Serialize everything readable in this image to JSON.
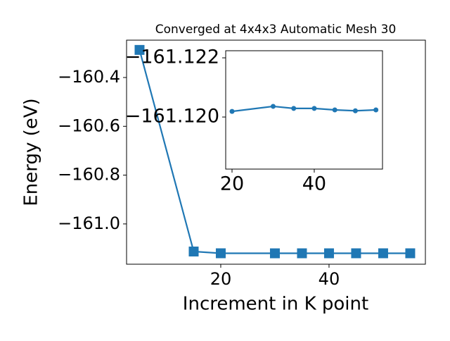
{
  "chart_data": [
    {
      "type": "line",
      "title": "Converged at 4x4x3 Automatic Mesh 30",
      "xlabel": "Increment in K point",
      "ylabel": "Energy (eV)",
      "marker": "square",
      "x": [
        5,
        15,
        20,
        30,
        35,
        40,
        45,
        50,
        55
      ],
      "series": [
        {
          "color": "#1f77b4",
          "values": [
            -160.287,
            -161.113,
            -161.1202,
            -161.12036,
            -161.12029,
            -161.12029,
            -161.12024,
            -161.12021,
            -161.12024
          ]
        }
      ],
      "xlim": [
        2.6,
        57.8
      ],
      "xticks": [
        20,
        40
      ],
      "ylim": [
        -161.165,
        -160.247
      ],
      "yticks": [
        {
          "value": -161.0,
          "label": "−161.0"
        },
        {
          "value": -160.8,
          "label": "−160.8"
        },
        {
          "value": -160.6,
          "label": "−160.6"
        },
        {
          "value": -160.4,
          "label": "−160.4"
        }
      ]
    },
    {
      "type": "line",
      "marker": "circle",
      "x": [
        20,
        30,
        35,
        40,
        45,
        50,
        55
      ],
      "series": [
        {
          "color": "#1f77b4",
          "values": [
            -161.12019,
            -161.12036,
            -161.12029,
            -161.12029,
            -161.12024,
            -161.12021,
            -161.12024
          ]
        }
      ],
      "xlim": [
        18.46,
        56.6
      ],
      "xticks": [
        20,
        40
      ],
      "ylim": [
        -161.11824,
        -161.12224
      ],
      "yticks": [
        {
          "value": -161.12,
          "label": "−161.120"
        },
        {
          "value": -161.122,
          "label": "−161.122"
        }
      ]
    }
  ]
}
